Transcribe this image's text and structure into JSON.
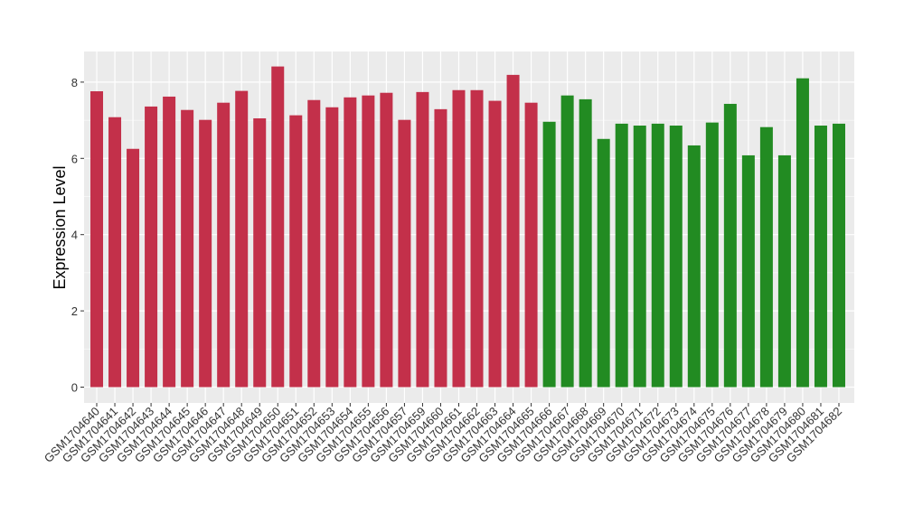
{
  "chart_data": {
    "type": "bar",
    "title": "",
    "xlabel": "",
    "ylabel": "Expression Level",
    "ylim": [
      -0.4,
      8.8
    ],
    "yticks": [
      0,
      2,
      4,
      6,
      8
    ],
    "grid": true,
    "background": "#EBEBEB",
    "categories": [
      "GSM1704640",
      "GSM1704641",
      "GSM1704642",
      "GSM1704643",
      "GSM1704644",
      "GSM1704645",
      "GSM1704646",
      "GSM1704647",
      "GSM1704648",
      "GSM1704649",
      "GSM1704650",
      "GSM1704651",
      "GSM1704652",
      "GSM1704653",
      "GSM1704654",
      "GSM1704655",
      "GSM1704656",
      "GSM1704657",
      "GSM1704659",
      "GSM1704660",
      "GSM1704661",
      "GSM1704662",
      "GSM1704663",
      "GSM1704664",
      "GSM1704665",
      "GSM1704666",
      "GSM1704667",
      "GSM1704668",
      "GSM1704669",
      "GSM1704670",
      "GSM1704671",
      "GSM1704672",
      "GSM1704673",
      "GSM1704674",
      "GSM1704675",
      "GSM1704676",
      "GSM1704677",
      "GSM1704678",
      "GSM1704679",
      "GSM1704680",
      "GSM1704681",
      "GSM1704682"
    ],
    "values": [
      7.76,
      7.08,
      6.25,
      7.36,
      7.62,
      7.27,
      7.01,
      7.46,
      7.77,
      7.05,
      8.41,
      7.13,
      7.53,
      7.34,
      7.6,
      7.65,
      7.72,
      7.01,
      7.74,
      7.29,
      7.79,
      7.79,
      7.51,
      8.19,
      7.46,
      6.96,
      7.65,
      7.55,
      6.51,
      6.91,
      6.86,
      6.91,
      6.86,
      6.34,
      6.94,
      7.43,
      6.08,
      6.82,
      6.08,
      8.1,
      6.86,
      6.91
    ],
    "group_colors": [
      "#C3304A",
      "#228B22"
    ],
    "groups": [
      0,
      0,
      0,
      0,
      0,
      0,
      0,
      0,
      0,
      0,
      0,
      0,
      0,
      0,
      0,
      0,
      0,
      0,
      0,
      0,
      0,
      0,
      0,
      0,
      0,
      1,
      1,
      1,
      1,
      1,
      1,
      1,
      1,
      1,
      1,
      1,
      1,
      1,
      1,
      1,
      1,
      1
    ]
  }
}
